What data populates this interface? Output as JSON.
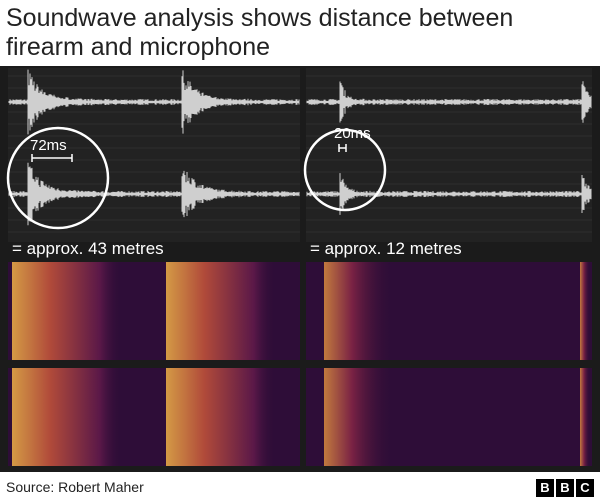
{
  "header": {
    "title": "Soundwave analysis shows distance between firearm and microphone"
  },
  "panels": [
    {
      "interval": "72ms",
      "distance": "= approx. 43 metres"
    },
    {
      "interval": "20ms",
      "distance": "= approx. 12 metres"
    }
  ],
  "footer": {
    "source": "Source: Robert Maher",
    "logo": [
      "B",
      "B",
      "C"
    ]
  }
}
